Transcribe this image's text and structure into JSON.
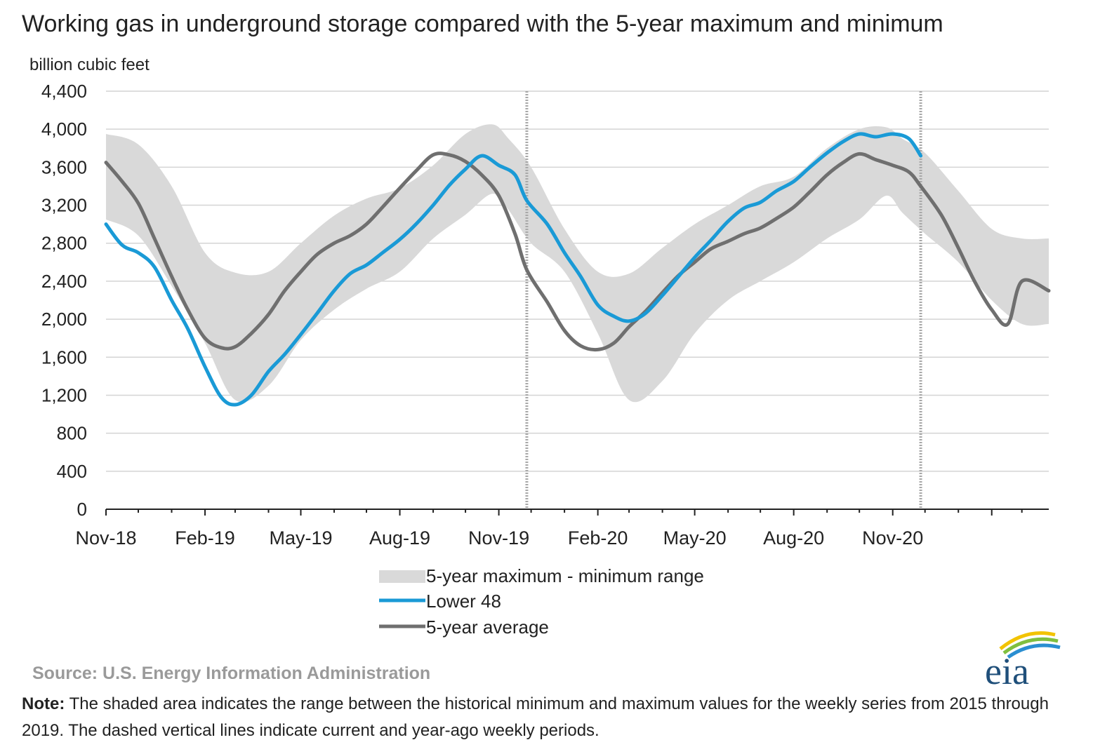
{
  "chart_data": {
    "type": "area",
    "title": "Working gas in underground storage compared with the 5-year maximum and minimum",
    "ylabel": "billion cubic feet",
    "xlabel": "",
    "ylim": [
      0,
      4400
    ],
    "yticks": [
      "0",
      "400",
      "800",
      "1,200",
      "1,600",
      "2,000",
      "2,400",
      "2,800",
      "3,200",
      "3,600",
      "4,000",
      "4,400"
    ],
    "xticks": [
      "Nov-18",
      "Feb-19",
      "May-19",
      "Aug-19",
      "Nov-19",
      "Feb-20",
      "May-20",
      "Aug-20",
      "Nov-20"
    ],
    "xlim": [
      "2018-11-01",
      "2021-03-26"
    ],
    "grid": true,
    "legend_position": "bottom",
    "current_week_markers": [
      "2019-11-27",
      "2020-11-27"
    ],
    "range": {
      "name": "5-year maximum - minimum range",
      "x": [
        "2018-11-01",
        "2018-12-01",
        "2019-01-01",
        "2019-02-01",
        "2019-03-01",
        "2019-04-01",
        "2019-05-01",
        "2019-06-01",
        "2019-07-01",
        "2019-08-01",
        "2019-09-01",
        "2019-10-01",
        "2019-10-26",
        "2019-11-10",
        "2019-12-01",
        "2020-01-01",
        "2020-02-01",
        "2020-03-01",
        "2020-04-01",
        "2020-05-01",
        "2020-06-01",
        "2020-07-01",
        "2020-08-01",
        "2020-09-01",
        "2020-10-01",
        "2020-10-26",
        "2020-11-10",
        "2020-12-01",
        "2021-01-01",
        "2021-02-01",
        "2021-03-01",
        "2021-03-26"
      ],
      "max": [
        3950,
        3840,
        3400,
        2700,
        2490,
        2500,
        2800,
        3090,
        3270,
        3380,
        3620,
        3950,
        4050,
        3900,
        3600,
        2950,
        2500,
        2480,
        2750,
        3000,
        3200,
        3400,
        3500,
        3800,
        4000,
        4020,
        3900,
        3750,
        3350,
        2950,
        2850,
        2850
      ],
      "min": [
        3050,
        2880,
        2350,
        1750,
        1150,
        1300,
        1780,
        2100,
        2320,
        2500,
        2850,
        3100,
        3320,
        3150,
        2800,
        2500,
        1850,
        1150,
        1350,
        1850,
        2200,
        2400,
        2600,
        2850,
        3050,
        3300,
        3120,
        2900,
        2600,
        2200,
        1950,
        1950
      ]
    },
    "series": [
      {
        "name": "Lower 48",
        "color": "#1a9ad6",
        "x": [
          "2018-11-01",
          "2018-11-16",
          "2018-12-01",
          "2018-12-16",
          "2019-01-01",
          "2019-01-16",
          "2019-02-01",
          "2019-02-16",
          "2019-03-01",
          "2019-03-16",
          "2019-04-01",
          "2019-04-16",
          "2019-05-01",
          "2019-05-16",
          "2019-06-01",
          "2019-06-16",
          "2019-07-01",
          "2019-07-16",
          "2019-08-01",
          "2019-08-16",
          "2019-09-01",
          "2019-09-16",
          "2019-10-01",
          "2019-10-16",
          "2019-11-01",
          "2019-11-16",
          "2019-11-27",
          "2019-12-16",
          "2020-01-01",
          "2020-01-16",
          "2020-02-01",
          "2020-02-16",
          "2020-03-01",
          "2020-03-16",
          "2020-04-01",
          "2020-04-16",
          "2020-05-01",
          "2020-05-16",
          "2020-06-01",
          "2020-06-16",
          "2020-07-01",
          "2020-07-16",
          "2020-08-01",
          "2020-08-16",
          "2020-09-01",
          "2020-09-16",
          "2020-10-01",
          "2020-10-16",
          "2020-11-01",
          "2020-11-16",
          "2020-11-27"
        ],
        "values": [
          3000,
          2780,
          2700,
          2550,
          2200,
          1900,
          1500,
          1180,
          1100,
          1200,
          1450,
          1630,
          1840,
          2060,
          2300,
          2480,
          2570,
          2700,
          2840,
          3000,
          3200,
          3410,
          3580,
          3720,
          3620,
          3520,
          3250,
          3000,
          2700,
          2450,
          2150,
          2030,
          1980,
          2060,
          2250,
          2450,
          2650,
          2830,
          3030,
          3170,
          3230,
          3350,
          3450,
          3600,
          3750,
          3870,
          3950,
          3920,
          3950,
          3900,
          3720
        ]
      },
      {
        "name": "5-year average",
        "color": "#6f6f6f",
        "x": [
          "2018-11-01",
          "2018-11-16",
          "2018-12-01",
          "2018-12-16",
          "2019-01-01",
          "2019-01-16",
          "2019-02-01",
          "2019-02-16",
          "2019-03-01",
          "2019-03-16",
          "2019-04-01",
          "2019-04-16",
          "2019-05-01",
          "2019-05-16",
          "2019-06-01",
          "2019-06-16",
          "2019-07-01",
          "2019-07-16",
          "2019-08-01",
          "2019-08-16",
          "2019-09-01",
          "2019-09-16",
          "2019-10-01",
          "2019-10-16",
          "2019-11-01",
          "2019-11-16",
          "2019-11-27",
          "2019-12-16",
          "2020-01-01",
          "2020-01-16",
          "2020-02-01",
          "2020-02-16",
          "2020-03-01",
          "2020-03-16",
          "2020-04-01",
          "2020-04-16",
          "2020-05-01",
          "2020-05-16",
          "2020-06-01",
          "2020-06-16",
          "2020-07-01",
          "2020-07-16",
          "2020-08-01",
          "2020-08-16",
          "2020-09-01",
          "2020-09-16",
          "2020-10-01",
          "2020-10-16",
          "2020-11-01",
          "2020-11-16",
          "2020-11-27",
          "2020-12-16",
          "2021-01-01",
          "2021-01-16",
          "2021-02-01",
          "2021-02-16",
          "2021-03-01",
          "2021-03-26"
        ],
        "values": [
          3650,
          3450,
          3220,
          2850,
          2450,
          2100,
          1800,
          1700,
          1710,
          1850,
          2050,
          2300,
          2500,
          2680,
          2800,
          2880,
          3000,
          3180,
          3380,
          3560,
          3730,
          3730,
          3660,
          3520,
          3300,
          2900,
          2520,
          2180,
          1880,
          1720,
          1680,
          1750,
          1920,
          2080,
          2280,
          2460,
          2600,
          2740,
          2820,
          2900,
          2960,
          3060,
          3180,
          3340,
          3520,
          3650,
          3740,
          3680,
          3620,
          3550,
          3400,
          3100,
          2750,
          2400,
          2100,
          1950,
          2400,
          2300
        ]
      }
    ],
    "legend": [
      "5-year maximum - minimum range",
      "Lower 48",
      "5-year average"
    ],
    "source": "Source:  U.S. Energy Information Administration"
  },
  "logo": {
    "text": "eia"
  },
  "note": {
    "label": "Note:",
    "text": " The shaded area indicates the range between the historical minimum and maximum values for the weekly series from 2015 through 2019. The dashed vertical lines indicate current and year-ago weekly periods."
  },
  "colors": {
    "range_fill": "#d9d9d9",
    "lower48": "#1a9ad6",
    "average": "#6f6f6f",
    "grid": "#d4d4d4",
    "axis": "#222222",
    "marker": "#a8a8a8"
  }
}
